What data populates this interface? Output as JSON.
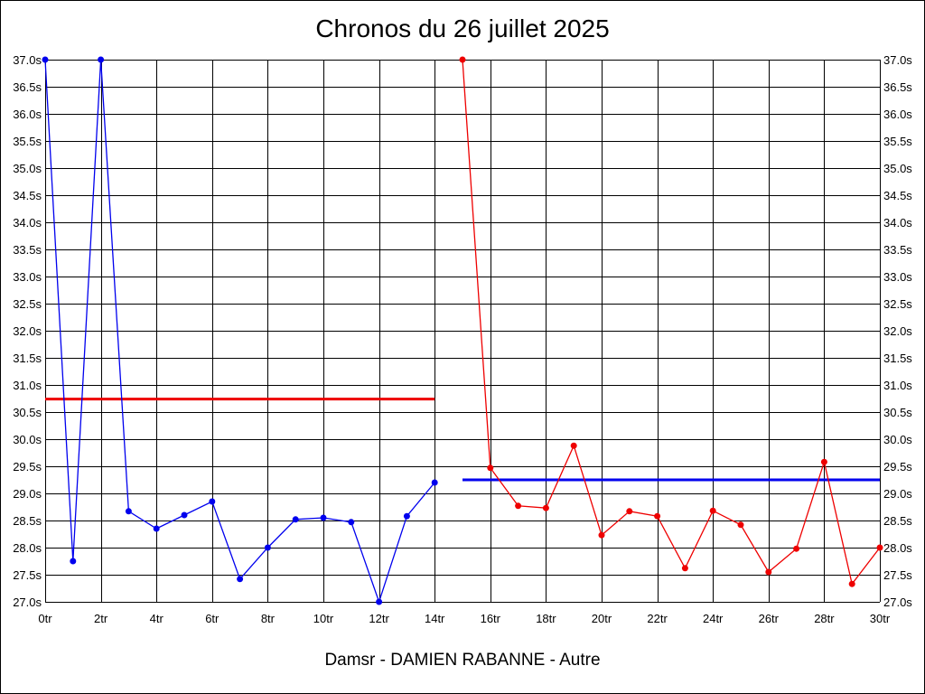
{
  "chart_data": {
    "type": "line",
    "title": "Chronos du 26 juillet 2025",
    "footer": "Damsr - DAMIEN RABANNE - Autre",
    "ylim": [
      27.0,
      37.0
    ],
    "xlim": [
      0,
      30
    ],
    "grid": true,
    "y_ticks": [
      "27.0s",
      "27.5s",
      "28.0s",
      "28.5s",
      "29.0s",
      "29.5s",
      "30.0s",
      "30.5s",
      "31.0s",
      "31.5s",
      "32.0s",
      "32.5s",
      "33.0s",
      "33.5s",
      "34.0s",
      "34.5s",
      "35.0s",
      "35.5s",
      "36.0s",
      "36.5s",
      "37.0s"
    ],
    "x_ticks": [
      "0tr",
      "2tr",
      "4tr",
      "6tr",
      "8tr",
      "10tr",
      "12tr",
      "14tr",
      "16tr",
      "18tr",
      "20tr",
      "22tr",
      "24tr",
      "26tr",
      "28tr",
      "30tr"
    ],
    "series": [
      {
        "color": "#0000ee",
        "x": [
          0,
          1,
          2,
          3,
          4,
          5,
          6,
          7,
          8,
          9,
          10,
          11,
          12,
          13,
          14
        ],
        "values": [
          37.0,
          27.75,
          37.0,
          28.67,
          28.35,
          28.6,
          28.85,
          27.42,
          28.0,
          28.52,
          28.55,
          28.47,
          27.0,
          28.58,
          29.2
        ]
      },
      {
        "color": "#ee0000",
        "x": [
          15,
          16,
          17,
          18,
          19,
          20,
          21,
          22,
          23,
          24,
          25,
          26,
          27,
          28,
          29,
          30
        ],
        "values": [
          37.0,
          29.47,
          28.77,
          28.73,
          29.88,
          28.23,
          28.67,
          28.58,
          27.62,
          28.68,
          28.42,
          27.55,
          27.98,
          29.58,
          27.33,
          28.0
        ]
      }
    ],
    "average_lines": [
      {
        "color": "#ee0000",
        "value": 30.74,
        "x_start": 0,
        "x_end": 14
      },
      {
        "color": "#0000ee",
        "value": 29.25,
        "x_start": 15,
        "x_end": 30
      }
    ]
  }
}
